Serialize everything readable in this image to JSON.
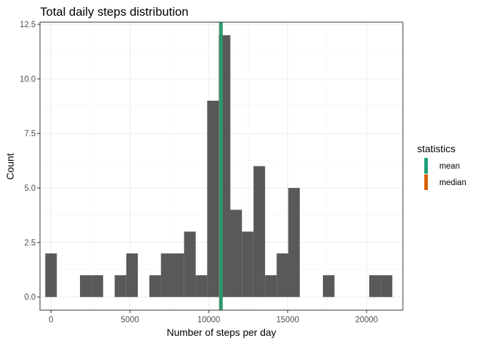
{
  "chart_data": {
    "type": "bar",
    "subtype": "histogram",
    "title": "Total daily steps distribution",
    "xlabel": "Number of steps per day",
    "ylabel": "Count",
    "xlim": [
      -700,
      22300
    ],
    "ylim": [
      -0.6,
      12.6
    ],
    "x_ticks": [
      0,
      5000,
      10000,
      15000,
      20000
    ],
    "x_tick_labels": [
      "0",
      "5000",
      "10000",
      "15000",
      "20000"
    ],
    "y_ticks": [
      0,
      2.5,
      5,
      7.5,
      10,
      12.5
    ],
    "y_tick_labels": [
      "0.0",
      "2.5",
      "5.0",
      "7.5",
      "10.0",
      "12.5"
    ],
    "grid": true,
    "bar_color": "#595959",
    "bins": [
      {
        "x0": -367,
        "x1": 367,
        "count": 2
      },
      {
        "x0": 367,
        "x1": 1100,
        "count": 0
      },
      {
        "x0": 1100,
        "x1": 1833,
        "count": 0
      },
      {
        "x0": 1833,
        "x1": 2567,
        "count": 1
      },
      {
        "x0": 2567,
        "x1": 3300,
        "count": 1
      },
      {
        "x0": 3300,
        "x1": 4033,
        "count": 0
      },
      {
        "x0": 4033,
        "x1": 4767,
        "count": 1
      },
      {
        "x0": 4767,
        "x1": 5500,
        "count": 2
      },
      {
        "x0": 5500,
        "x1": 6233,
        "count": 0
      },
      {
        "x0": 6233,
        "x1": 6967,
        "count": 1
      },
      {
        "x0": 6967,
        "x1": 7700,
        "count": 2
      },
      {
        "x0": 7700,
        "x1": 8433,
        "count": 2
      },
      {
        "x0": 8433,
        "x1": 9167,
        "count": 3
      },
      {
        "x0": 9167,
        "x1": 9900,
        "count": 1
      },
      {
        "x0": 9900,
        "x1": 10633,
        "count": 9
      },
      {
        "x0": 10633,
        "x1": 11367,
        "count": 12
      },
      {
        "x0": 11367,
        "x1": 12100,
        "count": 4
      },
      {
        "x0": 12100,
        "x1": 12833,
        "count": 3
      },
      {
        "x0": 12833,
        "x1": 13567,
        "count": 6
      },
      {
        "x0": 13567,
        "x1": 14300,
        "count": 1
      },
      {
        "x0": 14300,
        "x1": 15033,
        "count": 2
      },
      {
        "x0": 15033,
        "x1": 15767,
        "count": 5
      },
      {
        "x0": 15767,
        "x1": 16500,
        "count": 0
      },
      {
        "x0": 16500,
        "x1": 17233,
        "count": 0
      },
      {
        "x0": 17233,
        "x1": 17967,
        "count": 1
      },
      {
        "x0": 17967,
        "x1": 18700,
        "count": 0
      },
      {
        "x0": 18700,
        "x1": 19433,
        "count": 0
      },
      {
        "x0": 19433,
        "x1": 20167,
        "count": 0
      },
      {
        "x0": 20167,
        "x1": 20900,
        "count": 1
      },
      {
        "x0": 20900,
        "x1": 21633,
        "count": 1
      }
    ],
    "vlines": [
      {
        "name": "mean",
        "x": 10766,
        "color": "#1b9e77"
      },
      {
        "name": "median",
        "x": 10765,
        "color": "#d95f02"
      }
    ],
    "legend": {
      "title": "statistics",
      "position": "right",
      "items": [
        {
          "label": "mean",
          "color": "#1b9e77"
        },
        {
          "label": "median",
          "color": "#d95f02"
        }
      ]
    }
  }
}
